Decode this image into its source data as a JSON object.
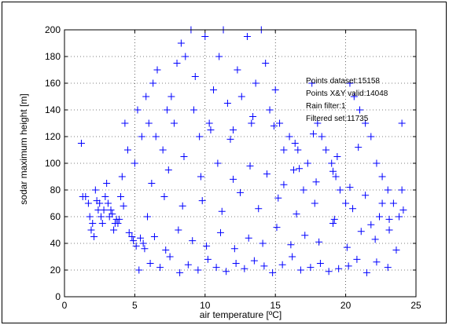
{
  "chart_data": {
    "type": "scatter",
    "title": "",
    "xlabel": "air temperature [ºC]",
    "ylabel": "sodar maximum height [m]",
    "xlim": [
      0,
      25
    ],
    "ylim": [
      0,
      200
    ],
    "x_ticks": [
      "0",
      "5",
      "10",
      "15",
      "20",
      "25"
    ],
    "y_ticks": [
      "0",
      "20",
      "40",
      "60",
      "80",
      "100",
      "120",
      "140",
      "160",
      "180",
      "200"
    ],
    "grid": true,
    "marker": "+",
    "color": "#0000ff",
    "annotations": [
      "Points dataset:15158",
      "Points X&Y valid:14048",
      "Rain filter:1",
      "Filtered set:11735"
    ],
    "series": [
      {
        "x": [
          1.2,
          1.5,
          1.8,
          2.0,
          2.2,
          2.5,
          2.8,
          3.0,
          3.2,
          3.5,
          3.8,
          4.0,
          2.1,
          2.6,
          3.1,
          3.6,
          4.1,
          1.9,
          2.4,
          2.9,
          3.4,
          3.9,
          4.3,
          4.5,
          4.8,
          5.0,
          5.2,
          5.5,
          5.8,
          6.0,
          6.3,
          6.6,
          7.0,
          7.3,
          7.6,
          8.0,
          8.3,
          8.6,
          9.0,
          9.3,
          9.6,
          10.0,
          10.3,
          10.6,
          11.0,
          11.3,
          11.6,
          12.0,
          12.3,
          12.6,
          13.0,
          13.3,
          13.6,
          14.0,
          14.3,
          14.6,
          15.0,
          15.3,
          15.6,
          16.0,
          16.3,
          16.6,
          17.0,
          17.3,
          17.6,
          18.0,
          18.3,
          18.6,
          19.0,
          19.3,
          19.6,
          20.0,
          20.3,
          20.6,
          21.0,
          21.4,
          21.8,
          22.2,
          22.6,
          23.0,
          23.4,
          23.8,
          24.0,
          5.3,
          6.1,
          6.8,
          7.5,
          8.2,
          8.8,
          9.5,
          10.2,
          10.8,
          11.5,
          12.2,
          12.8,
          13.5,
          14.2,
          14.8,
          15.5,
          16.2,
          16.8,
          17.5,
          18.2,
          18.8,
          19.5,
          20.2,
          20.8,
          21.5,
          22.2,
          23.0,
          5.6,
          6.4,
          7.2,
          8.1,
          9.1,
          10.1,
          11.1,
          12.1,
          13.1,
          14.1,
          15.1,
          16.1,
          17.1,
          18.1,
          19.1,
          20.1,
          21.1,
          22.1,
          23.1,
          24.1,
          6.2,
          7.4,
          8.5,
          9.7,
          10.9,
          12.0,
          13.2,
          14.4,
          15.6,
          16.7,
          17.9,
          19.1,
          20.3,
          21.4,
          22.6,
          5.9,
          7.1,
          8.4,
          9.8,
          11.2,
          12.5,
          13.8,
          15.2,
          16.5,
          17.8,
          19.2,
          20.5,
          21.8,
          23.1,
          24.0,
          1.3,
          1.7,
          2.3,
          2.7,
          3.3,
          3.7,
          4.2,
          4.6,
          4.9,
          5.1,
          5.4,
          5.7,
          6.5,
          7.8,
          9.2,
          10.4,
          11.8,
          13.4,
          14.9,
          16.4,
          17.7,
          19.4,
          20.9,
          22.4,
          23.6
        ],
        "y": [
          115,
          75,
          60,
          55,
          80,
          70,
          65,
          85,
          60,
          50,
          55,
          75,
          45,
          60,
          70,
          55,
          90,
          50,
          65,
          75,
          62,
          58,
          130,
          110,
          45,
          100,
          140,
          120,
          150,
          130,
          160,
          170,
          110,
          140,
          150,
          175,
          190,
          180,
          200,
          165,
          120,
          195,
          130,
          155,
          180,
          200,
          145,
          125,
          170,
          150,
          195,
          130,
          160,
          200,
          175,
          140,
          155,
          130,
          110,
          120,
          95,
          110,
          80,
          100,
          160,
          130,
          120,
          110,
          100,
          90,
          80,
          70,
          160,
          150,
          140,
          130,
          120,
          100,
          90,
          80,
          70,
          60,
          130,
          20,
          25,
          22,
          30,
          18,
          24,
          20,
          28,
          22,
          19,
          25,
          21,
          27,
          23,
          18,
          24,
          30,
          20,
          22,
          25,
          19,
          21,
          23,
          28,
          18,
          26,
          22,
          40,
          45,
          35,
          50,
          42,
          38,
          48,
          36,
          44,
          40,
          52,
          39,
          46,
          41,
          55,
          37,
          49,
          43,
          58,
          65,
          85,
          95,
          105,
          90,
          100,
          88,
          98,
          92,
          84,
          96,
          86,
          94,
          82,
          76,
          70,
          60,
          75,
          68,
          72,
          64,
          78,
          66,
          74,
          62,
          70,
          58,
          66,
          54,
          50,
          80,
          75,
          70,
          72,
          55,
          65,
          58,
          68,
          48,
          42,
          38,
          44,
          36,
          120,
          130,
          140,
          125,
          118,
          135,
          128,
          115,
          122,
          105,
          112,
          60,
          35
        ]
      }
    ]
  }
}
